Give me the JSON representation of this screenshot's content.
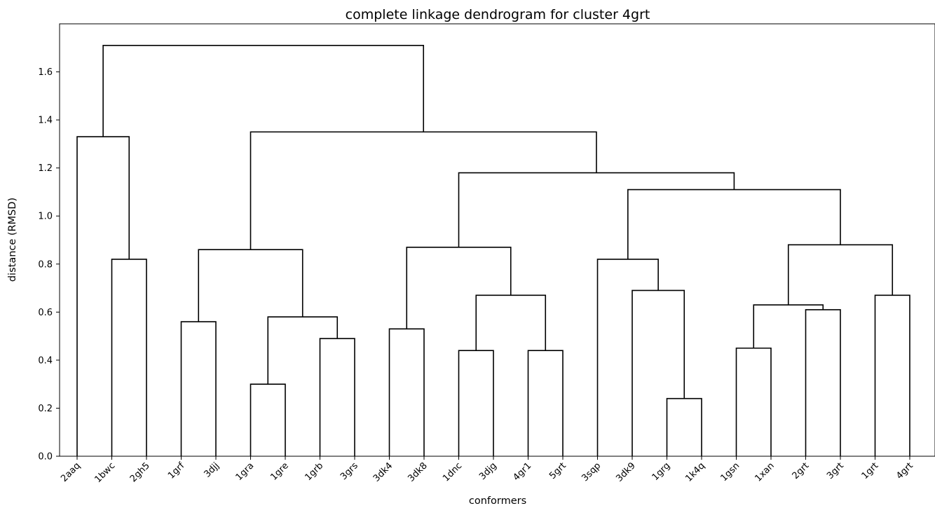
{
  "chart_data": {
    "type": "dendrogram",
    "title": "complete linkage dendrogram for cluster 4grt",
    "xlabel": "conformers",
    "ylabel": "distance (RMSD)",
    "ylim": [
      0,
      1.8
    ],
    "y_ticks": [
      "0.0",
      "0.2",
      "0.4",
      "0.6",
      "0.8",
      "1.0",
      "1.2",
      "1.4",
      "1.6"
    ],
    "grid": false,
    "leaves": [
      "2aaq",
      "1bwc",
      "2gh5",
      "1grf",
      "3djj",
      "1gra",
      "1gre",
      "1grb",
      "3grs",
      "3dk4",
      "3dk8",
      "1dnc",
      "3djg",
      "4gr1",
      "5grt",
      "3sqp",
      "3dk9",
      "1grg",
      "1k4q",
      "1gsn",
      "1xan",
      "2grt",
      "3grt",
      "1grt",
      "4grt"
    ],
    "merges": [
      {
        "left": "1gra",
        "right": "1gre",
        "height": 0.3
      },
      {
        "left": "1grg",
        "right": "1k4q",
        "height": 0.24
      },
      {
        "left": "1dnc",
        "right": "3djg",
        "height": 0.44
      },
      {
        "left": "4gr1",
        "right": "5grt",
        "height": 0.44
      },
      {
        "left": "1gsn",
        "right": "1xan",
        "height": 0.45
      },
      {
        "left": "1grb",
        "right": "3grs",
        "height": 0.49
      },
      {
        "left": "3dk4",
        "right": "3dk8",
        "height": 0.53
      },
      {
        "left": "1grf",
        "right": "3djj",
        "height": 0.56
      },
      {
        "left": "{1gra,1gre}",
        "right": "{1grb,3grs}",
        "height": 0.58
      },
      {
        "left": "2grt",
        "right": "3grt",
        "height": 0.61
      },
      {
        "left": "{1gsn,1xan}",
        "right": "{2grt,3grt}",
        "height": 0.63
      },
      {
        "left": "{1dnc,3djg}",
        "right": "{4gr1,5grt}",
        "height": 0.67
      },
      {
        "left": "1grt",
        "right": "4grt",
        "height": 0.67
      },
      {
        "left": "3dk9",
        "right": "{1grg,1k4q}",
        "height": 0.69
      },
      {
        "left": "1bwc",
        "right": "2gh5",
        "height": 0.82
      },
      {
        "left": "3sqp",
        "right": "{3dk9,1grg,1k4q}",
        "height": 0.82
      },
      {
        "left": "{1grf,3djj}",
        "right": "{1gra,1gre,1grb,3grs}",
        "height": 0.86
      },
      {
        "left": "{3dk4,3dk8}",
        "right": "{1dnc,3djg,4gr1,5grt}",
        "height": 0.87
      },
      {
        "left": "{1gsn,1xan,2grt,3grt}",
        "right": "{1grt,4grt}",
        "height": 0.88
      },
      {
        "left": "{3sqp,...}",
        "right": "{1gsn,...,4grt}",
        "height": 1.11
      },
      {
        "left": "{3dk4,...,5grt}",
        "right": "{3sqp,...,4grt}",
        "height": 1.18
      },
      {
        "left": "2aaq",
        "right": "{1bwc,2gh5}",
        "height": 1.33
      },
      {
        "left": "{1grf,...,3grs}",
        "right": "{3dk4,...,4grt}",
        "height": 1.35
      },
      {
        "left": "{2aaq,1bwc,2gh5}",
        "right": "{1grf,...,4grt}",
        "height": 1.71
      }
    ],
    "link_color": "#000000"
  }
}
